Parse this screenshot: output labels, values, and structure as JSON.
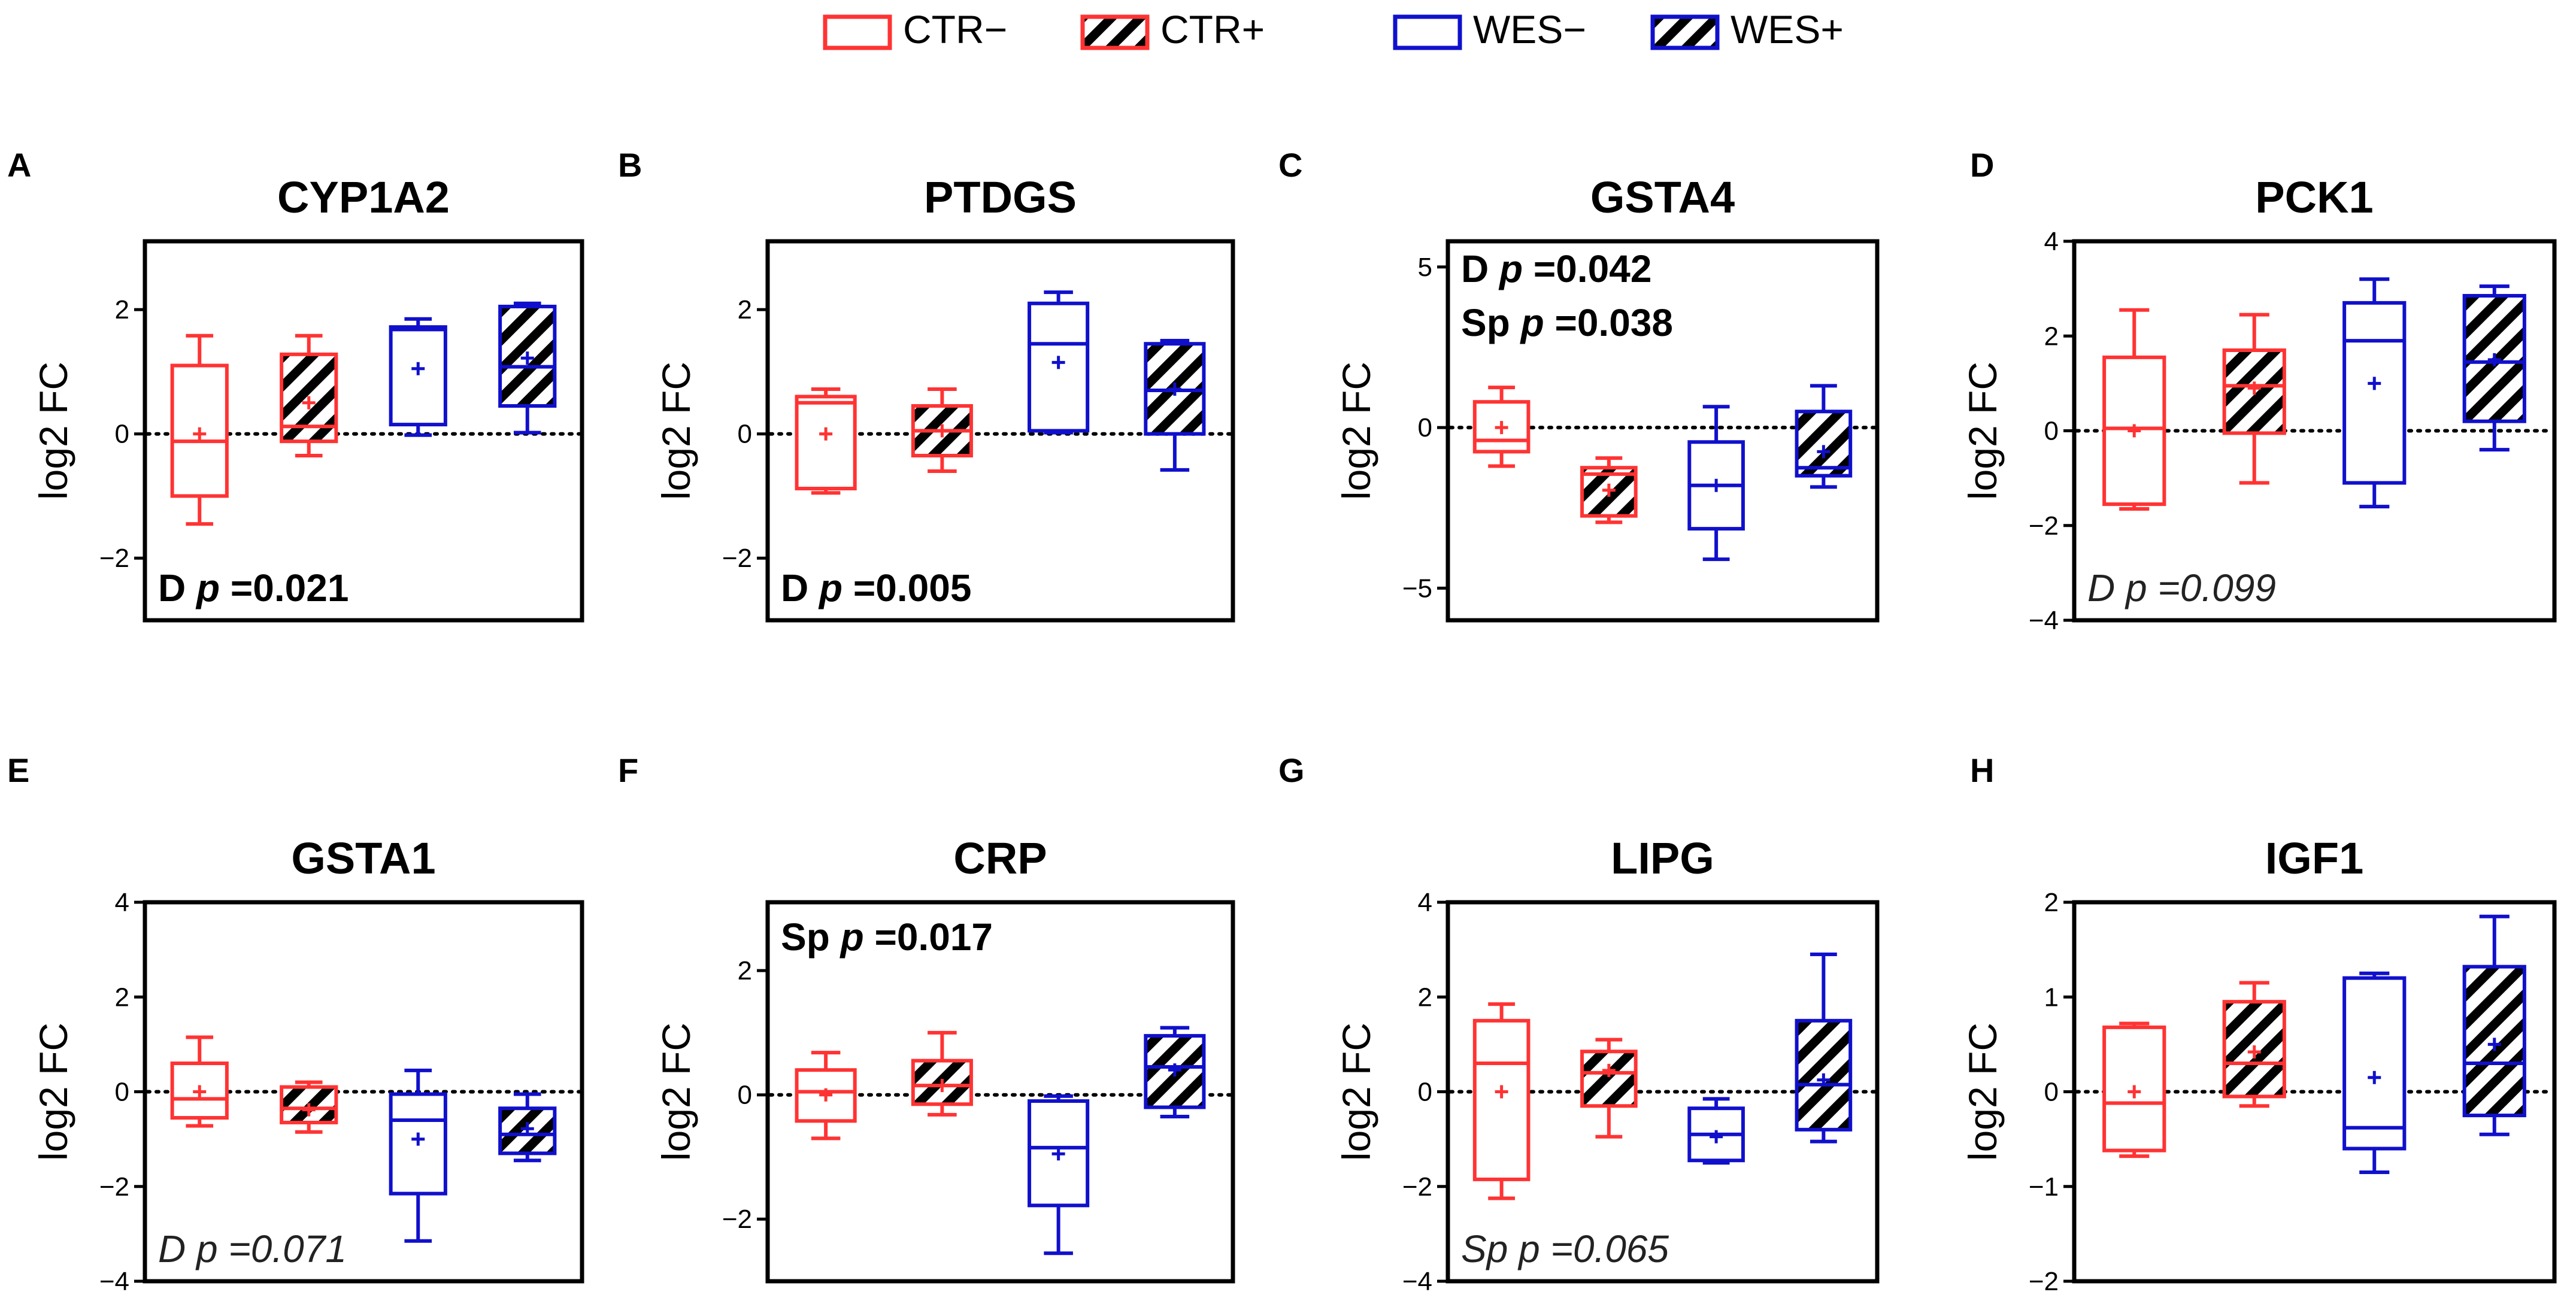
{
  "legend": {
    "items": [
      {
        "label": "CTR−",
        "color": "#ff3333",
        "hatched": false
      },
      {
        "label": "CTR+",
        "color": "#ff3333",
        "hatched": true
      },
      {
        "label": "WES−",
        "color": "#1010cc",
        "hatched": false
      },
      {
        "label": "WES+",
        "color": "#1010cc",
        "hatched": true
      }
    ]
  },
  "colors": {
    "ctr": "#ff3333",
    "wes": "#1010cc",
    "hatch": "#000000"
  },
  "chart_data": [
    {
      "panel": "A",
      "type": "box",
      "title": "CYP1A2",
      "ylabel": "log2 FC",
      "ylim": [
        -3,
        3.1
      ],
      "yticks": [
        2,
        0,
        -2
      ],
      "ytick_labels": [
        "2",
        "0",
        "−2"
      ],
      "annotation": {
        "prefix": "D",
        "p_text": "p",
        "value": " =0.021",
        "style": "bold",
        "position": "bottom-left"
      },
      "groups": [
        {
          "name": "CTR−",
          "min": -1.45,
          "q1": -1.0,
          "median": -0.12,
          "q3": 1.1,
          "max": 1.58,
          "mean": 0.0
        },
        {
          "name": "CTR+",
          "min": -0.35,
          "q1": -0.12,
          "median": 0.12,
          "q3": 1.28,
          "max": 1.58,
          "mean": 0.5
        },
        {
          "name": "WES−",
          "min": -0.02,
          "q1": 0.15,
          "median": 1.68,
          "q3": 1.72,
          "max": 1.85,
          "mean": 1.05
        },
        {
          "name": "WES+",
          "min": 0.02,
          "q1": 0.45,
          "median": 1.08,
          "q3": 2.05,
          "max": 2.1,
          "mean": 1.22
        }
      ]
    },
    {
      "panel": "B",
      "type": "box",
      "title": "PTDGS",
      "ylabel": "log2 FC",
      "ylim": [
        -3,
        3.1
      ],
      "yticks": [
        2,
        0,
        -2
      ],
      "ytick_labels": [
        "2",
        "0",
        "−2"
      ],
      "annotation": {
        "prefix": "D",
        "p_text": "p",
        "value": " =0.005",
        "style": "bold",
        "position": "bottom-left"
      },
      "groups": [
        {
          "name": "CTR−",
          "min": -0.95,
          "q1": -0.88,
          "median": 0.5,
          "q3": 0.6,
          "max": 0.72,
          "mean": 0.0
        },
        {
          "name": "CTR+",
          "min": -0.6,
          "q1": -0.35,
          "median": 0.05,
          "q3": 0.45,
          "max": 0.72,
          "mean": 0.05
        },
        {
          "name": "WES−",
          "min": 0.02,
          "q1": 0.05,
          "median": 1.45,
          "q3": 2.1,
          "max": 2.28,
          "mean": 1.15
        },
        {
          "name": "WES+",
          "min": -0.58,
          "q1": 0.0,
          "median": 0.7,
          "q3": 1.45,
          "max": 1.5,
          "mean": 0.72
        }
      ]
    },
    {
      "panel": "C",
      "type": "box",
      "title": "GSTA4",
      "ylabel": "log2 FC",
      "ylim": [
        -6,
        5.8
      ],
      "yticks": [
        5,
        0,
        -5
      ],
      "ytick_labels": [
        "5",
        "0",
        "−5"
      ],
      "annotation_lines": [
        {
          "prefix": "D",
          "p_text": "p",
          "value": " =0.042"
        },
        {
          "prefix": "Sp",
          "p_text": "p",
          "value": " =0.038"
        }
      ],
      "groups": [
        {
          "name": "CTR−",
          "min": -1.2,
          "q1": -0.75,
          "median": -0.4,
          "q3": 0.8,
          "max": 1.25,
          "mean": 0.0
        },
        {
          "name": "CTR+",
          "min": -2.95,
          "q1": -2.75,
          "median": -1.45,
          "q3": -1.25,
          "max": -0.95,
          "mean": -1.95
        },
        {
          "name": "WES−",
          "min": -4.1,
          "q1": -3.15,
          "median": -1.8,
          "q3": -0.45,
          "max": 0.65,
          "mean": -1.8
        },
        {
          "name": "WES+",
          "min": -1.85,
          "q1": -1.5,
          "median": -1.25,
          "q3": 0.5,
          "max": 1.3,
          "mean": -0.75
        }
      ]
    },
    {
      "panel": "D",
      "type": "box",
      "title": "PCK1",
      "ylabel": "log2 FC",
      "ylim": [
        -4,
        4
      ],
      "yticks": [
        4,
        2,
        0,
        -2,
        -4
      ],
      "ytick_labels": [
        "4",
        "2",
        "0",
        "−2",
        "−4"
      ],
      "annotation": {
        "prefix": "D",
        "p_text": "p",
        "value": " =0.099",
        "style": "italic",
        "position": "bottom-left"
      },
      "groups": [
        {
          "name": "CTR−",
          "min": -1.65,
          "q1": -1.55,
          "median": 0.05,
          "q3": 1.55,
          "max": 2.55,
          "mean": 0.0
        },
        {
          "name": "CTR+",
          "min": -1.1,
          "q1": -0.05,
          "median": 0.95,
          "q3": 1.7,
          "max": 2.45,
          "mean": 0.9
        },
        {
          "name": "WES−",
          "min": -1.6,
          "q1": -1.1,
          "median": 1.9,
          "q3": 2.7,
          "max": 3.2,
          "mean": 1.0
        },
        {
          "name": "WES+",
          "min": -0.4,
          "q1": 0.2,
          "median": 1.45,
          "q3": 2.85,
          "max": 3.05,
          "mean": 1.5
        }
      ]
    },
    {
      "panel": "E",
      "type": "box",
      "title": "GSTA1",
      "ylabel": "log2 FC",
      "ylim": [
        -4,
        4
      ],
      "yticks": [
        4,
        2,
        0,
        -2,
        -4
      ],
      "ytick_labels": [
        "4",
        "2",
        "0",
        "−2",
        "−4"
      ],
      "annotation": {
        "prefix": "D",
        "p_text": "p",
        "value": " =0.071",
        "style": "italic",
        "position": "bottom-left"
      },
      "groups": [
        {
          "name": "CTR−",
          "min": -0.72,
          "q1": -0.55,
          "median": -0.15,
          "q3": 0.6,
          "max": 1.15,
          "mean": 0.0
        },
        {
          "name": "CTR+",
          "min": -0.85,
          "q1": -0.65,
          "median": -0.35,
          "q3": 0.1,
          "max": 0.2,
          "mean": -0.38
        },
        {
          "name": "WES−",
          "min": -3.15,
          "q1": -2.15,
          "median": -0.6,
          "q3": -0.05,
          "max": 0.45,
          "mean": -1.0
        },
        {
          "name": "WES+",
          "min": -1.45,
          "q1": -1.3,
          "median": -0.9,
          "q3": -0.35,
          "max": -0.05,
          "mean": -0.78
        }
      ]
    },
    {
      "panel": "F",
      "type": "box",
      "title": "CRP",
      "ylabel": "log2 FC",
      "ylim": [
        -3,
        3.1
      ],
      "yticks": [
        2,
        0,
        -2
      ],
      "ytick_labels": [
        "2",
        "0",
        "−2"
      ],
      "annotation": {
        "prefix": "Sp",
        "p_text": "p",
        "value": " =0.017",
        "style": "bold",
        "position": "top-left"
      },
      "groups": [
        {
          "name": "CTR−",
          "min": -0.7,
          "q1": -0.42,
          "median": 0.05,
          "q3": 0.4,
          "max": 0.68,
          "mean": 0.0
        },
        {
          "name": "CTR+",
          "min": -0.32,
          "q1": -0.15,
          "median": 0.15,
          "q3": 0.55,
          "max": 1.0,
          "mean": 0.15
        },
        {
          "name": "WES−",
          "min": -2.55,
          "q1": -1.78,
          "median": -0.85,
          "q3": -0.1,
          "max": -0.02,
          "mean": -0.95
        },
        {
          "name": "WES+",
          "min": -0.35,
          "q1": -0.2,
          "median": 0.45,
          "q3": 0.95,
          "max": 1.08,
          "mean": 0.4
        }
      ]
    },
    {
      "panel": "G",
      "type": "box",
      "title": "LIPG",
      "ylabel": "log2 FC",
      "ylim": [
        -4,
        4
      ],
      "yticks": [
        4,
        2,
        0,
        -2,
        -4
      ],
      "ytick_labels": [
        "4",
        "2",
        "0",
        "−2",
        "−4"
      ],
      "annotation": {
        "prefix": "Sp",
        "p_text": "p",
        "value": " =0.065",
        "style": "italic",
        "position": "bottom-left"
      },
      "groups": [
        {
          "name": "CTR−",
          "min": -2.25,
          "q1": -1.85,
          "median": 0.6,
          "q3": 1.5,
          "max": 1.85,
          "mean": 0.0
        },
        {
          "name": "CTR+",
          "min": -0.95,
          "q1": -0.3,
          "median": 0.4,
          "q3": 0.85,
          "max": 1.1,
          "mean": 0.45
        },
        {
          "name": "WES−",
          "min": -1.5,
          "q1": -1.45,
          "median": -0.9,
          "q3": -0.35,
          "max": -0.15,
          "mean": -0.95
        },
        {
          "name": "WES+",
          "min": -1.05,
          "q1": -0.8,
          "median": 0.15,
          "q3": 1.5,
          "max": 2.9,
          "mean": 0.25
        }
      ]
    },
    {
      "panel": "H",
      "type": "box",
      "title": "IGF1",
      "ylabel": "log2 FC",
      "ylim": [
        -2,
        2
      ],
      "yticks": [
        2,
        1,
        0,
        -1,
        -2
      ],
      "ytick_labels": [
        "2",
        "1",
        "0",
        "−1",
        "−2"
      ],
      "groups": [
        {
          "name": "CTR−",
          "min": -0.68,
          "q1": -0.62,
          "median": -0.12,
          "q3": 0.68,
          "max": 0.72,
          "mean": 0.0
        },
        {
          "name": "CTR+",
          "min": -0.15,
          "q1": -0.05,
          "median": 0.3,
          "q3": 0.95,
          "max": 1.15,
          "mean": 0.42
        },
        {
          "name": "WES−",
          "min": -0.85,
          "q1": -0.6,
          "median": -0.38,
          "q3": 1.2,
          "max": 1.25,
          "mean": 0.15
        },
        {
          "name": "WES+",
          "min": -0.45,
          "q1": -0.25,
          "median": 0.3,
          "q3": 1.32,
          "max": 1.85,
          "mean": 0.5
        }
      ]
    }
  ]
}
